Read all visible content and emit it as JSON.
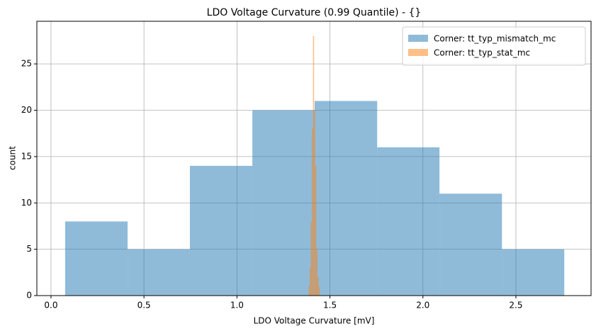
{
  "chart_data": {
    "type": "histogram",
    "title": "LDO Voltage Curvature (0.99 Quantile) - {}",
    "x_label": "LDO Voltage Curvature [mV]",
    "y_label": "count",
    "series": [
      {
        "name": "Corner: tt_typ_mismatch_mc",
        "color": "#1f77b4",
        "bins": [
          0.076,
          0.412,
          0.747,
          1.083,
          1.418,
          1.754,
          2.089,
          2.425,
          2.76
        ],
        "values": [
          8,
          5,
          14,
          20,
          21,
          16,
          11,
          5
        ]
      },
      {
        "name": "Corner: tt_typ_stat_mc",
        "color": "#ff7f0e",
        "bins": [
          1.385,
          1.391,
          1.397,
          1.403,
          1.409,
          1.415,
          1.421,
          1.427,
          1.433,
          1.439,
          1.445
        ],
        "values": [
          1,
          3,
          8,
          18,
          28,
          20,
          14,
          5,
          2,
          1
        ]
      }
    ],
    "xlim": [
      -0.076,
      2.904
    ],
    "ylim": [
      0,
      29.6
    ],
    "xticks": [
      {
        "value": 0,
        "label": "0.0"
      },
      0.5,
      {
        "value": 1,
        "label": "1.0"
      },
      1.5,
      {
        "value": 2,
        "label": "2.0"
      },
      2.5
    ],
    "yticks": [
      0,
      5,
      10,
      15,
      20,
      25
    ],
    "grid": true,
    "legend": "upper-right",
    "opacity": 0.5
  }
}
